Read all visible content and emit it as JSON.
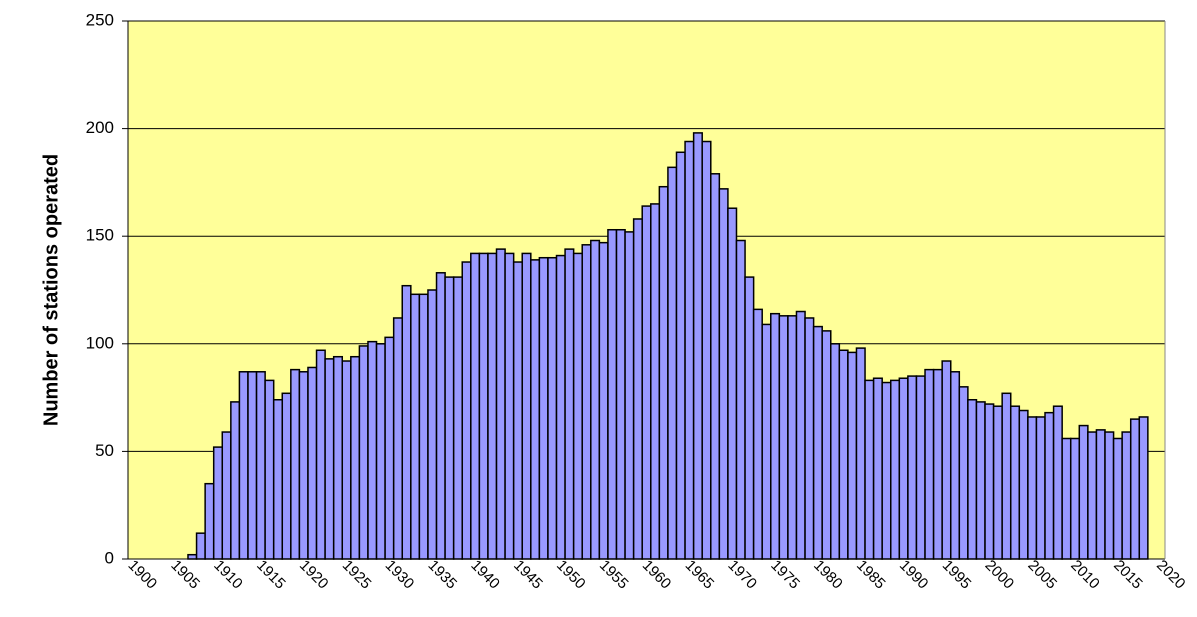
{
  "chart_data": {
    "type": "bar",
    "y_label": "Number of stations operated",
    "categories": [
      "1900",
      null,
      null,
      null,
      null,
      "1905",
      null,
      null,
      null,
      null,
      "1910",
      null,
      null,
      null,
      null,
      "1915",
      null,
      null,
      null,
      null,
      "1920",
      null,
      null,
      null,
      null,
      "1925",
      null,
      null,
      null,
      null,
      "1930",
      null,
      null,
      null,
      null,
      "1935",
      null,
      null,
      null,
      null,
      "1940",
      null,
      null,
      null,
      null,
      "1945",
      null,
      null,
      null,
      null,
      "1950",
      null,
      null,
      null,
      null,
      "1955",
      null,
      null,
      null,
      null,
      "1960",
      null,
      null,
      null,
      null,
      "1965",
      null,
      null,
      null,
      null,
      "1970",
      null,
      null,
      null,
      null,
      "1975",
      null,
      null,
      null,
      null,
      "1980",
      null,
      null,
      null,
      null,
      "1985",
      null,
      null,
      null,
      null,
      "1990",
      null,
      null,
      null,
      null,
      "1995",
      null,
      null,
      null,
      null,
      "2000",
      null,
      null,
      null,
      null,
      "2005",
      null,
      null,
      null,
      null,
      "2010",
      null,
      null,
      null,
      null,
      "2015",
      null,
      null,
      null,
      null,
      "2020"
    ],
    "values": [
      null,
      null,
      null,
      null,
      null,
      null,
      null,
      2,
      12,
      35,
      52,
      59,
      73,
      87,
      87,
      87,
      83,
      74,
      77,
      88,
      87,
      89,
      97,
      93,
      94,
      92,
      94,
      99,
      101,
      100,
      103,
      112,
      127,
      123,
      123,
      125,
      133,
      131,
      131,
      138,
      142,
      142,
      142,
      144,
      142,
      138,
      142,
      139,
      140,
      140,
      141,
      144,
      142,
      146,
      148,
      147,
      153,
      153,
      152,
      158,
      164,
      165,
      173,
      182,
      189,
      194,
      198,
      194,
      179,
      172,
      163,
      148,
      131,
      116,
      109,
      114,
      113,
      113,
      115,
      112,
      108,
      106,
      100,
      97,
      96,
      98,
      83,
      84,
      82,
      83,
      84,
      85,
      85,
      88,
      88,
      92,
      87,
      80,
      74,
      73,
      72,
      71,
      77,
      71,
      69,
      66,
      66,
      68,
      71,
      56,
      56,
      62,
      59,
      60,
      59,
      56,
      59,
      65,
      66,
      null,
      null
    ],
    "color": "#9999ff",
    "background": "#ffff99",
    "ylim": [
      0,
      250
    ],
    "yticks": [
      0,
      50,
      100,
      150,
      200,
      250
    ],
    "grid": true
  }
}
